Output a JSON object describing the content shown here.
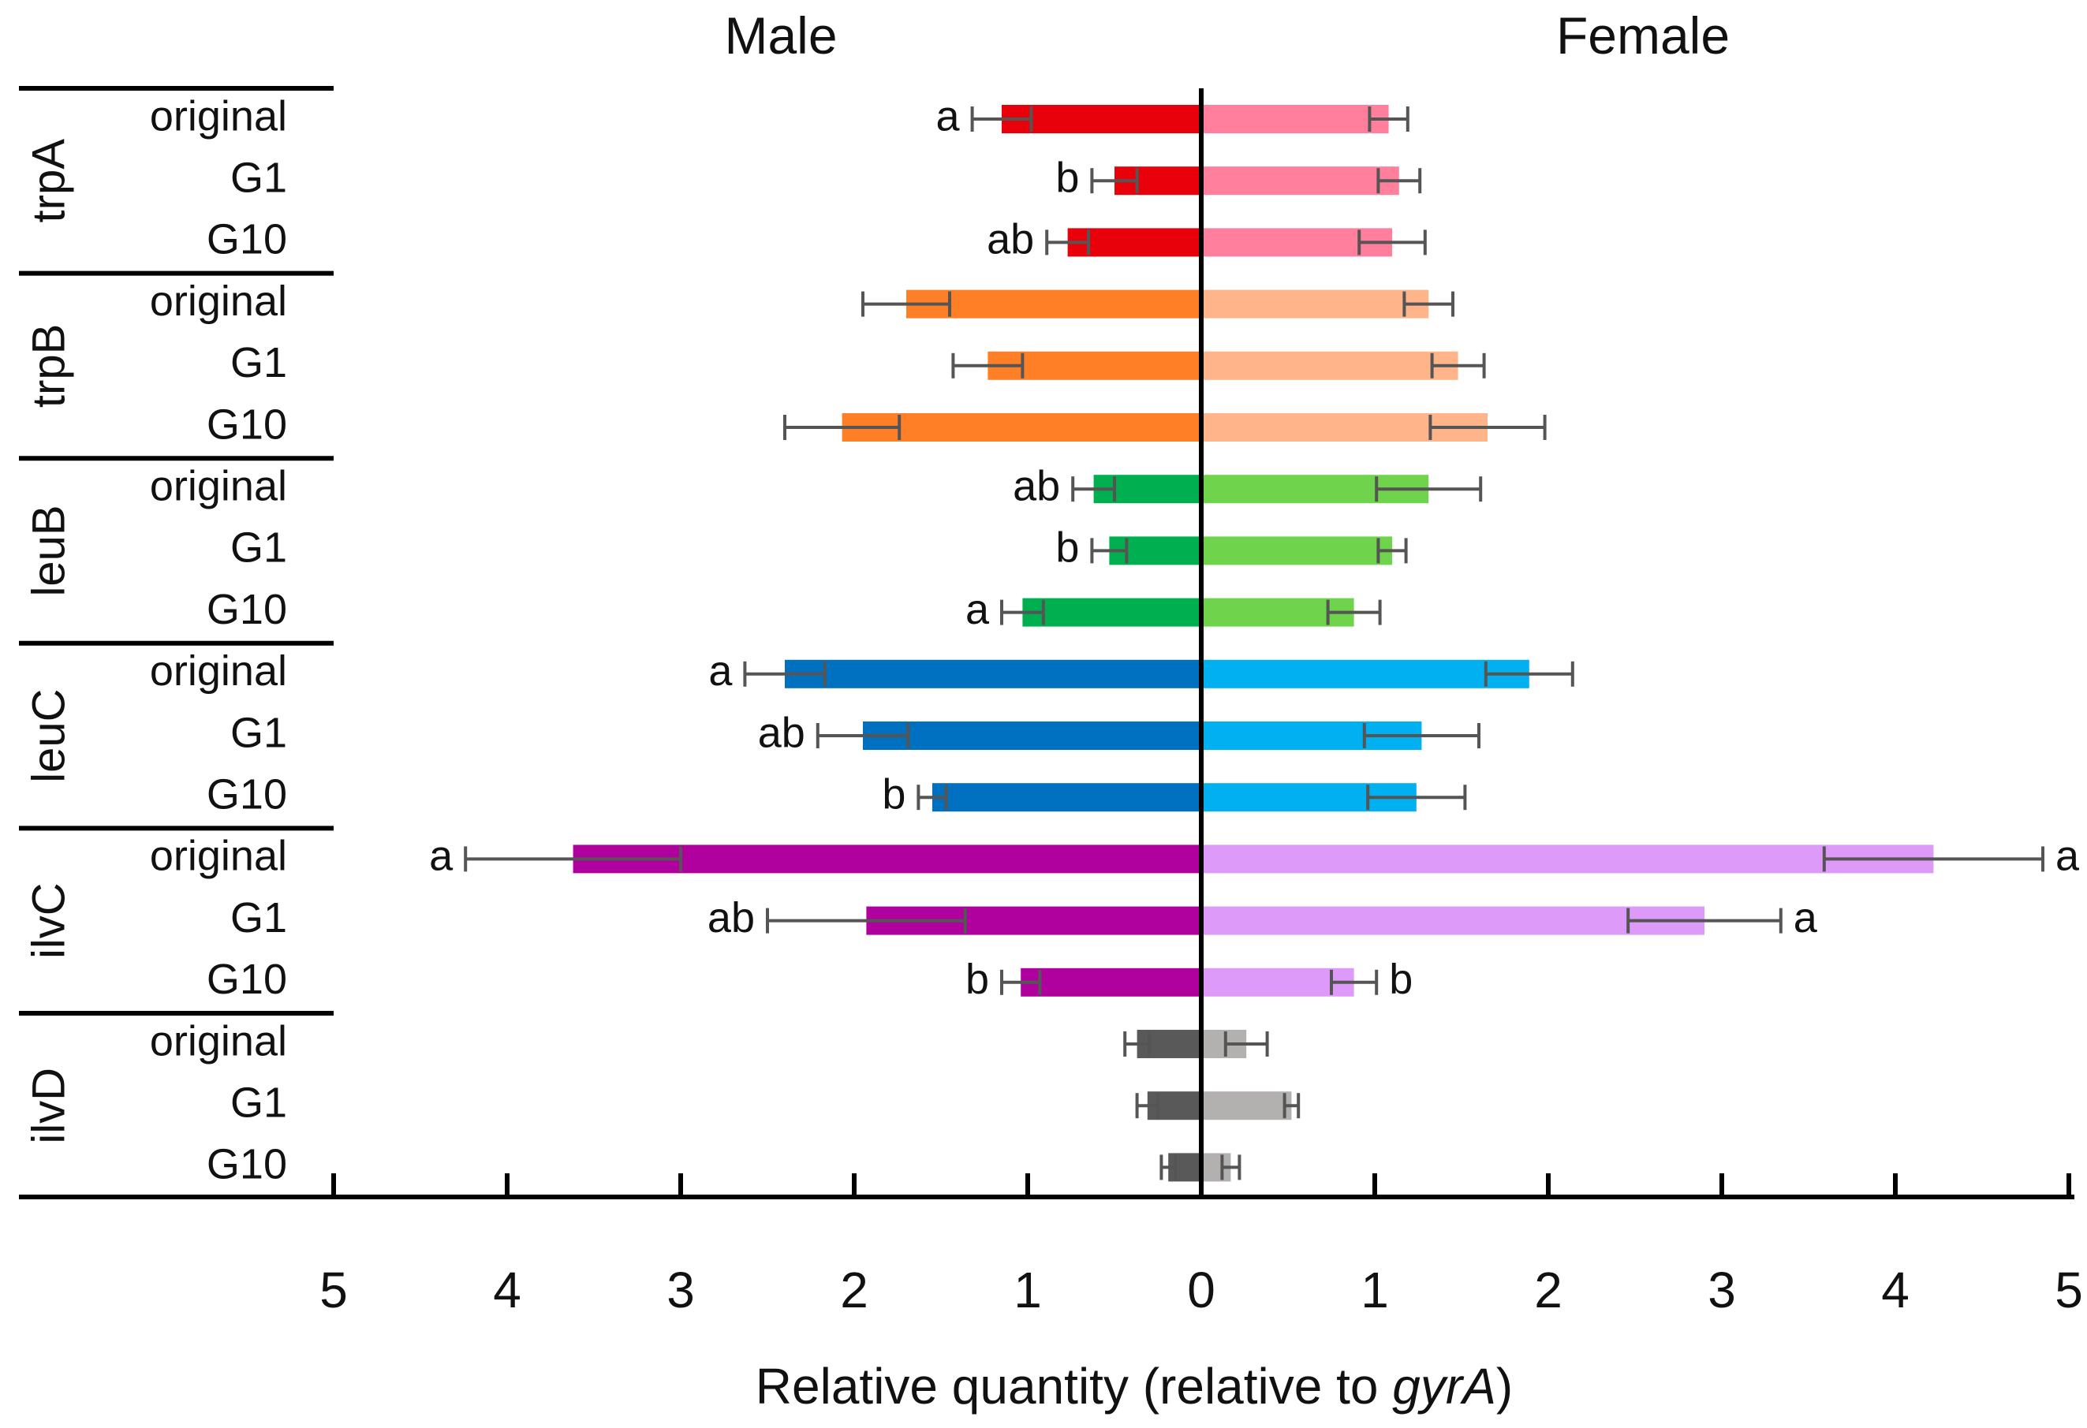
{
  "chart_data": {
    "type": "bar",
    "orientation": "horizontal-diverging",
    "left_title": "Male",
    "right_title": "Female",
    "xlabel_prefix": "Relative quantity (relative to ",
    "xlabel_italic": "gyrA",
    "xlabel_suffix": ")",
    "xlim": [
      0,
      5
    ],
    "tick_labels": [
      "5",
      "4",
      "3",
      "2",
      "1",
      "0",
      "1",
      "2",
      "3",
      "4",
      "5"
    ],
    "tick_values": [
      -5,
      -4,
      -3,
      -2,
      -1,
      0,
      1,
      2,
      3,
      4,
      5
    ],
    "groups": [
      {
        "name": "trpA",
        "male_color": "#e8000b",
        "female_color": "#ff7f9c",
        "rows": [
          {
            "label": "original",
            "male": 1.15,
            "male_err": 0.17,
            "male_letter": "a",
            "female": 1.08,
            "female_err": 0.11,
            "female_letter": ""
          },
          {
            "label": "G1",
            "male": 0.5,
            "male_err": 0.13,
            "male_letter": "b",
            "female": 1.14,
            "female_err": 0.12,
            "female_letter": ""
          },
          {
            "label": "G10",
            "male": 0.77,
            "male_err": 0.12,
            "male_letter": "ab",
            "female": 1.1,
            "female_err": 0.19,
            "female_letter": ""
          }
        ]
      },
      {
        "name": "trpB",
        "male_color": "#ff7f27",
        "female_color": "#ffb48a",
        "rows": [
          {
            "label": "original",
            "male": 1.7,
            "male_err": 0.25,
            "male_letter": "",
            "female": 1.31,
            "female_err": 0.14,
            "female_letter": ""
          },
          {
            "label": "G1",
            "male": 1.23,
            "male_err": 0.2,
            "male_letter": "",
            "female": 1.48,
            "female_err": 0.15,
            "female_letter": ""
          },
          {
            "label": "G10",
            "male": 2.07,
            "male_err": 0.33,
            "male_letter": "",
            "female": 1.65,
            "female_err": 0.33,
            "female_letter": ""
          }
        ]
      },
      {
        "name": "leuB",
        "male_color": "#00b050",
        "female_color": "#6fd44b",
        "rows": [
          {
            "label": "original",
            "male": 0.62,
            "male_err": 0.12,
            "male_letter": "ab",
            "female": 1.31,
            "female_err": 0.3,
            "female_letter": ""
          },
          {
            "label": "G1",
            "male": 0.53,
            "male_err": 0.1,
            "male_letter": "b",
            "female": 1.1,
            "female_err": 0.08,
            "female_letter": ""
          },
          {
            "label": "G10",
            "male": 1.03,
            "male_err": 0.12,
            "male_letter": "a",
            "female": 0.88,
            "female_err": 0.15,
            "female_letter": ""
          }
        ]
      },
      {
        "name": "leuC",
        "male_color": "#0070c0",
        "female_color": "#00b0f0",
        "rows": [
          {
            "label": "original",
            "male": 2.4,
            "male_err": 0.23,
            "male_letter": "a",
            "female": 1.89,
            "female_err": 0.25,
            "female_letter": ""
          },
          {
            "label": "G1",
            "male": 1.95,
            "male_err": 0.26,
            "male_letter": "ab",
            "female": 1.27,
            "female_err": 0.33,
            "female_letter": ""
          },
          {
            "label": "G10",
            "male": 1.55,
            "male_err": 0.08,
            "male_letter": "b",
            "female": 1.24,
            "female_err": 0.28,
            "female_letter": ""
          }
        ]
      },
      {
        "name": "ilvC",
        "male_color": "#b0009e",
        "female_color": "#dd9af8",
        "rows": [
          {
            "label": "original",
            "male": 3.62,
            "male_err": 0.62,
            "male_letter": "a",
            "female": 4.22,
            "female_err": 0.63,
            "female_letter": "a"
          },
          {
            "label": "G1",
            "male": 1.93,
            "male_err": 0.57,
            "male_letter": "ab",
            "female": 2.9,
            "female_err": 0.44,
            "female_letter": "a"
          },
          {
            "label": "G10",
            "male": 1.04,
            "male_err": 0.11,
            "male_letter": "b",
            "female": 0.88,
            "female_err": 0.13,
            "female_letter": "b"
          }
        ]
      },
      {
        "name": "ilvD",
        "male_color": "#595959",
        "female_color": "#b3b0b0",
        "rows": [
          {
            "label": "original",
            "male": 0.37,
            "male_err": 0.07,
            "male_letter": "",
            "female": 0.26,
            "female_err": 0.12,
            "female_letter": ""
          },
          {
            "label": "G1",
            "male": 0.31,
            "male_err": 0.06,
            "male_letter": "",
            "female": 0.52,
            "female_err": 0.04,
            "female_letter": ""
          },
          {
            "label": "G10",
            "male": 0.19,
            "male_err": 0.04,
            "male_letter": "",
            "female": 0.17,
            "female_err": 0.05,
            "female_letter": ""
          }
        ]
      }
    ]
  }
}
